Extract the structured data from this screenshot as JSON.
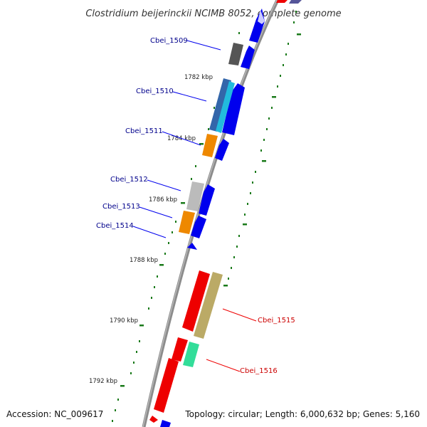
{
  "title": "Clostridium beijerinckii NCIMB 8052, complete genome",
  "footer": {
    "accession": "Accession: NC_009617",
    "summary": "Topology: circular; Length: 6,000,632 bp; Genes: 5,160"
  },
  "ruler_ticks": [
    "1782 kbp",
    "1784 kbp",
    "1786 kbp",
    "1788 kbp",
    "1790 kbp",
    "1792 kbp"
  ],
  "gene_labels": [
    {
      "name": "Cbei_1509",
      "color": "#00008b"
    },
    {
      "name": "Cbei_1510",
      "color": "#00008b"
    },
    {
      "name": "Cbei_1511",
      "color": "#00008b"
    },
    {
      "name": "Cbei_1512",
      "color": "#00008b"
    },
    {
      "name": "Cbei_1513",
      "color": "#00008b"
    },
    {
      "name": "Cbei_1514",
      "color": "#00008b"
    },
    {
      "name": "Cbei_1515",
      "color": "#cc0000"
    },
    {
      "name": "Cbei_1516",
      "color": "#cc0000"
    }
  ],
  "colors": {
    "backbone": "#888888",
    "tick": "#1a7a1a",
    "forward_strand": "#0000ee",
    "reverse_strand": "#ee0000"
  }
}
